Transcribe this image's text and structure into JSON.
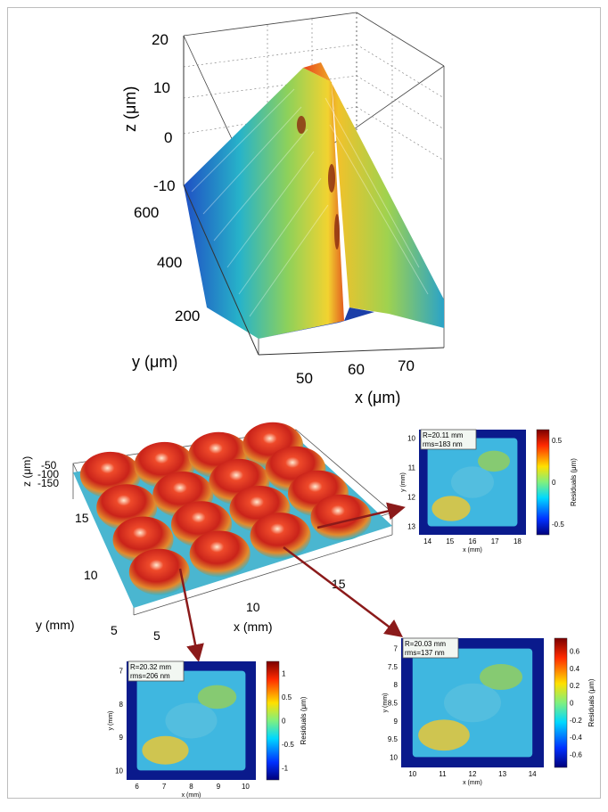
{
  "plot3d_top": {
    "z_label": "z (μm)",
    "y_label": "y (μm)",
    "x_label": "x (μm)",
    "z_ticks": [
      "20",
      "10",
      "0",
      "-10"
    ],
    "y_ticks": [
      "600",
      "400",
      "200"
    ],
    "x_ticks": [
      "50",
      "60",
      "70"
    ]
  },
  "plot3d_bottom": {
    "z_label": "z (μm)",
    "z_ticks": [
      "-50",
      "-100",
      "-150"
    ],
    "y_label": "y (mm)",
    "y_ticks": [
      "15",
      "10",
      "5"
    ],
    "x_label": "x (mm)",
    "x_ticks": [
      "5",
      "10",
      "15"
    ]
  },
  "residual_maps": [
    {
      "id": "top-right",
      "R_text": "R=20.11 mm",
      "rms_text": "rms=183 nm",
      "y_ticks": [
        "10",
        "11",
        "12",
        "13"
      ],
      "x_ticks": [
        "14",
        "15",
        "16",
        "17",
        "18"
      ],
      "xlabel": "x (mm)",
      "ylabel": "y (mm)",
      "colorbar_ticks": [
        "0.5",
        "0",
        "-0.5"
      ],
      "colorbar_label": "Residuals (μm)"
    },
    {
      "id": "bottom-left",
      "R_text": "R=20.32 mm",
      "rms_text": "rms=206 nm",
      "y_ticks": [
        "7",
        "8",
        "9",
        "10"
      ],
      "x_ticks": [
        "6",
        "7",
        "8",
        "9",
        "10"
      ],
      "xlabel": "x (mm)",
      "ylabel": "y (mm)",
      "colorbar_ticks": [
        "1",
        "0.5",
        "0",
        "-0.5",
        "-1"
      ],
      "colorbar_label": "Residuals (μm)"
    },
    {
      "id": "bottom-right",
      "R_text": "R=20.03 mm",
      "rms_text": "rms=137 nm",
      "y_ticks": [
        "7",
        "7.5",
        "8",
        "8.5",
        "9",
        "9.5",
        "10"
      ],
      "x_ticks": [
        "10",
        "11",
        "12",
        "13",
        "14"
      ],
      "xlabel": "x (mm)",
      "ylabel": "y (mm)",
      "colorbar_ticks": [
        "0.6",
        "0.4",
        "0.2",
        "0",
        "-0.2",
        "-0.4",
        "-0.6"
      ],
      "colorbar_label": "Residuals (μm)"
    }
  ],
  "colors": {
    "arrow": "#8b1a1a",
    "map_background": "#0a1a8c",
    "map_surface": "#3fb7e0"
  }
}
